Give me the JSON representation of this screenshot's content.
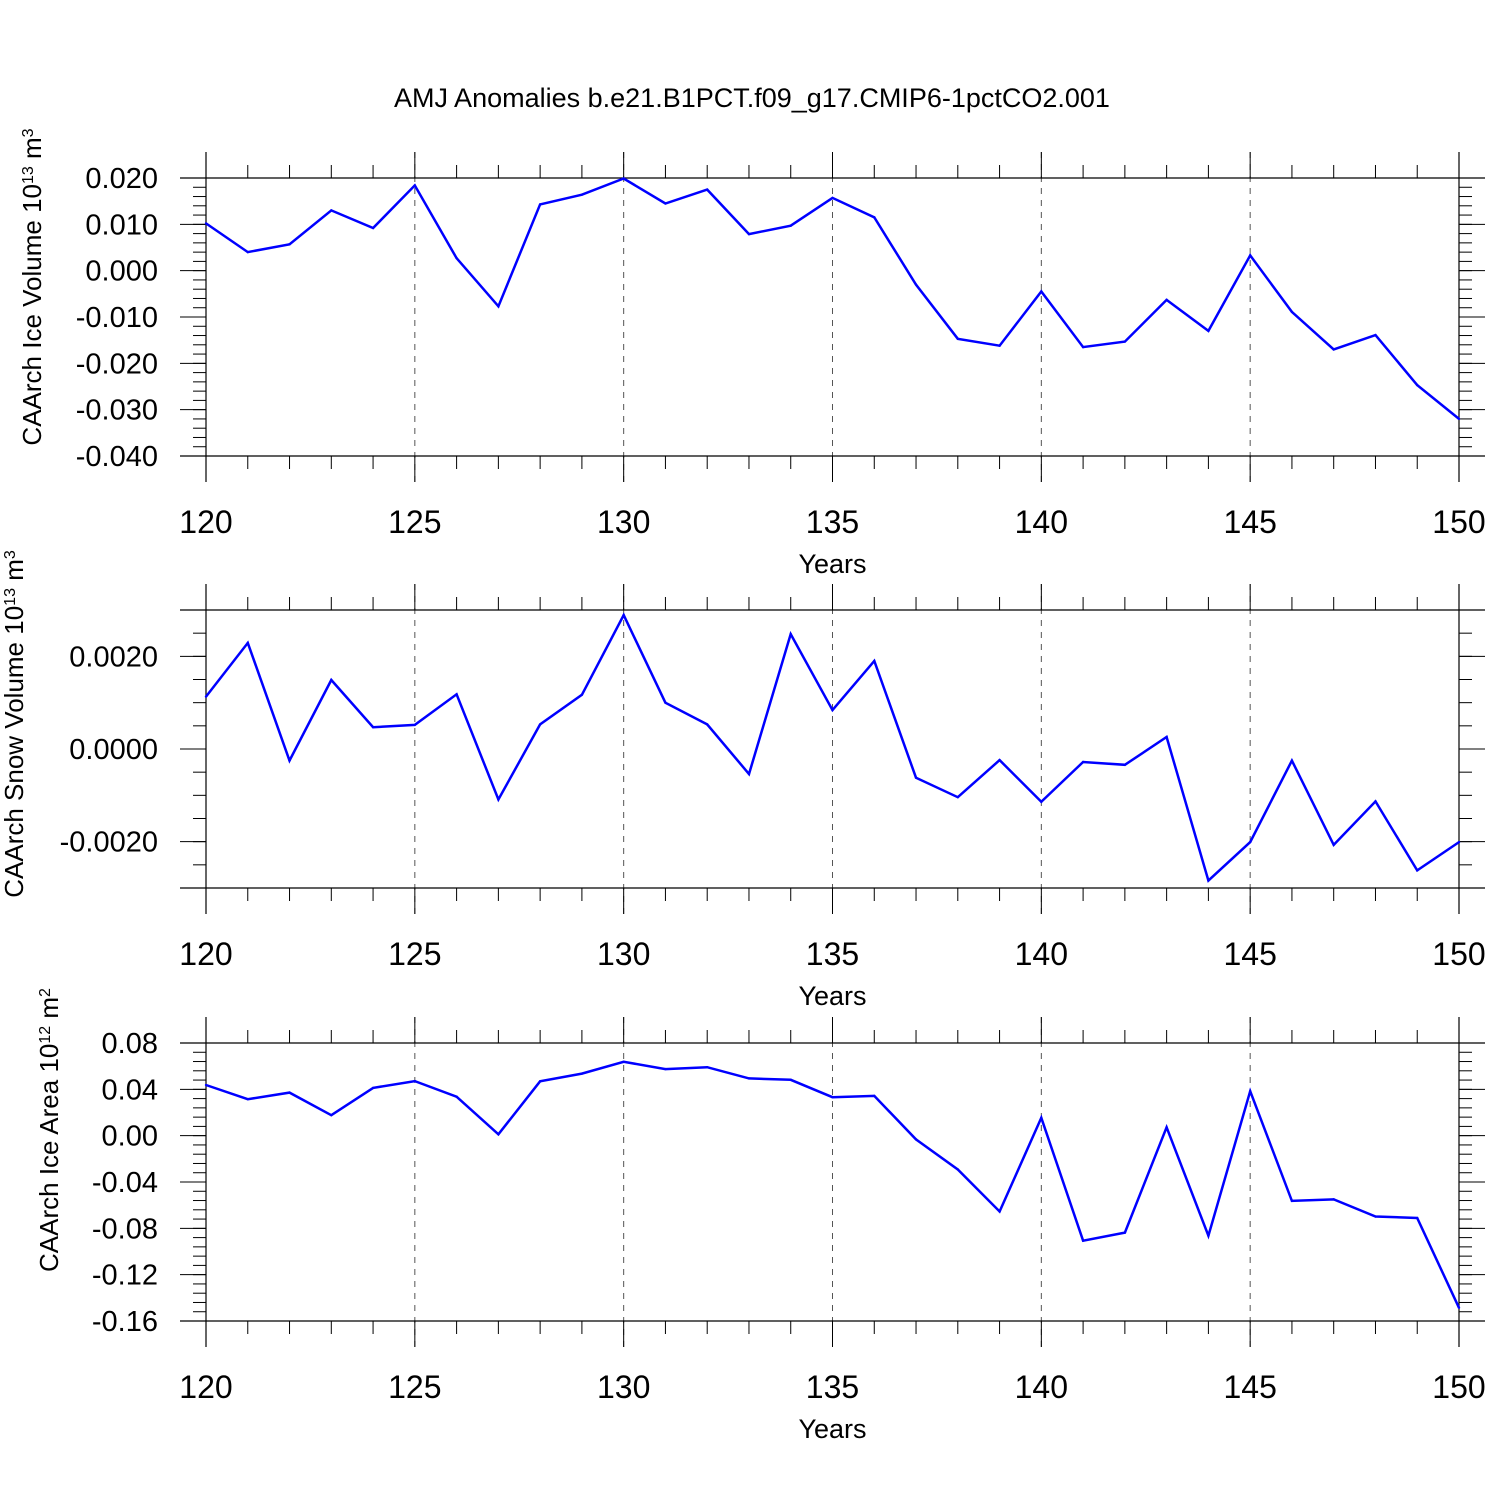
{
  "title": "AMJ Anomalies b.e21.B1PCT.f09_g17.CMIP6-1pctCO2.001",
  "colors": {
    "line": "#0000ff",
    "axis": "#000000",
    "grid": "#555555",
    "background": "#ffffff"
  },
  "chart_data": [
    {
      "type": "line",
      "ylabel": {
        "text": "CAArch Ice Volume 10",
        "exp": "13",
        "unit": " m",
        "unit_exp": "3"
      },
      "xlabel": "Years",
      "xlim": [
        120,
        150
      ],
      "ylim": [
        -0.04,
        0.02
      ],
      "yticks": [
        -0.04,
        -0.03,
        -0.02,
        -0.01,
        0.0,
        0.01,
        0.02
      ],
      "yticklabels": [
        "-0.040",
        "-0.030",
        "-0.020",
        "-0.010",
        "0.000",
        "0.010",
        "0.020"
      ],
      "yminor_step": 0.002,
      "xticks": [
        120,
        125,
        130,
        135,
        140,
        145,
        150
      ],
      "xticklabels": [
        "120",
        "125",
        "130",
        "135",
        "140",
        "145",
        "150"
      ],
      "x": [
        120,
        121,
        122,
        123,
        124,
        125,
        126,
        127,
        128,
        129,
        130,
        131,
        132,
        133,
        134,
        135,
        136,
        137,
        138,
        139,
        140,
        141,
        142,
        143,
        144,
        145,
        146,
        147,
        148,
        149,
        150
      ],
      "series": [
        {
          "name": "CAArch Ice Volume",
          "values": [
            0.0102,
            0.004,
            0.0057,
            0.013,
            0.0092,
            0.0184,
            0.0027,
            -0.0077,
            0.0143,
            0.0164,
            0.0199,
            0.0145,
            0.0175,
            0.0079,
            0.0097,
            0.0157,
            0.0115,
            -0.003,
            -0.0147,
            -0.0162,
            -0.0045,
            -0.0165,
            -0.0153,
            -0.0063,
            -0.013,
            0.0033,
            -0.0089,
            -0.017,
            -0.0139,
            -0.0247,
            -0.032
          ]
        }
      ]
    },
    {
      "type": "line",
      "ylabel": {
        "text": "CAArch Snow Volume 10",
        "exp": "13",
        "unit": " m",
        "unit_exp": "3"
      },
      "xlabel": "Years",
      "xlim": [
        120,
        150
      ],
      "ylim": [
        -0.003,
        0.003
      ],
      "yticks": [
        -0.002,
        0.0,
        0.002
      ],
      "yticklabels": [
        "-0.0020",
        "0.0000",
        "0.0020"
      ],
      "yminor_step": 0.0005,
      "xticks": [
        120,
        125,
        130,
        135,
        140,
        145,
        150
      ],
      "xticklabels": [
        "120",
        "125",
        "130",
        "135",
        "140",
        "145",
        "150"
      ],
      "x": [
        120,
        121,
        122,
        123,
        124,
        125,
        126,
        127,
        128,
        129,
        130,
        131,
        132,
        133,
        134,
        135,
        136,
        137,
        138,
        139,
        140,
        141,
        142,
        143,
        144,
        145,
        146,
        147,
        148,
        149,
        150
      ],
      "series": [
        {
          "name": "CAArch Snow Volume",
          "values": [
            0.00113,
            0.00229,
            -0.00025,
            0.00149,
            0.00047,
            0.00052,
            0.00118,
            -0.00109,
            0.00053,
            0.00117,
            0.00289,
            0.001,
            0.00053,
            -0.00054,
            0.00248,
            0.00084,
            0.0019,
            -0.00062,
            -0.00104,
            -0.00024,
            -0.00114,
            -0.00028,
            -0.00034,
            0.00026,
            -0.00284,
            -0.00201,
            -0.00025,
            -0.00207,
            -0.00113,
            -0.00262,
            -0.00201
          ]
        }
      ]
    },
    {
      "type": "line",
      "ylabel": {
        "text": "CAArch Ice Area 10",
        "exp": "12",
        "unit": " m",
        "unit_exp": "2"
      },
      "xlabel": "Years",
      "xlim": [
        120,
        150
      ],
      "ylim": [
        -0.16,
        0.08
      ],
      "yticks": [
        -0.16,
        -0.12,
        -0.08,
        -0.04,
        0.0,
        0.04,
        0.08
      ],
      "yticklabels": [
        "-0.16",
        "-0.12",
        "-0.08",
        "-0.04",
        "0.00",
        "0.04",
        "0.08"
      ],
      "yminor_step": 0.008,
      "xticks": [
        120,
        125,
        130,
        135,
        140,
        145,
        150
      ],
      "xticklabels": [
        "120",
        "125",
        "130",
        "135",
        "140",
        "145",
        "150"
      ],
      "x": [
        120,
        121,
        122,
        123,
        124,
        125,
        126,
        127,
        128,
        129,
        130,
        131,
        132,
        133,
        134,
        135,
        136,
        137,
        138,
        139,
        140,
        141,
        142,
        143,
        144,
        145,
        146,
        147,
        148,
        149,
        150
      ],
      "series": [
        {
          "name": "CAArch Ice Area",
          "values": [
            0.0437,
            0.0315,
            0.0372,
            0.0177,
            0.0412,
            0.0471,
            0.0336,
            0.0012,
            0.0469,
            0.0536,
            0.0638,
            0.0575,
            0.0591,
            0.0494,
            0.0482,
            0.0332,
            0.0343,
            -0.0032,
            -0.0292,
            -0.0655,
            0.0154,
            -0.0907,
            -0.0837,
            0.0072,
            -0.0864,
            0.0384,
            -0.0563,
            -0.055,
            -0.0698,
            -0.0711,
            -0.1486
          ]
        }
      ]
    }
  ]
}
